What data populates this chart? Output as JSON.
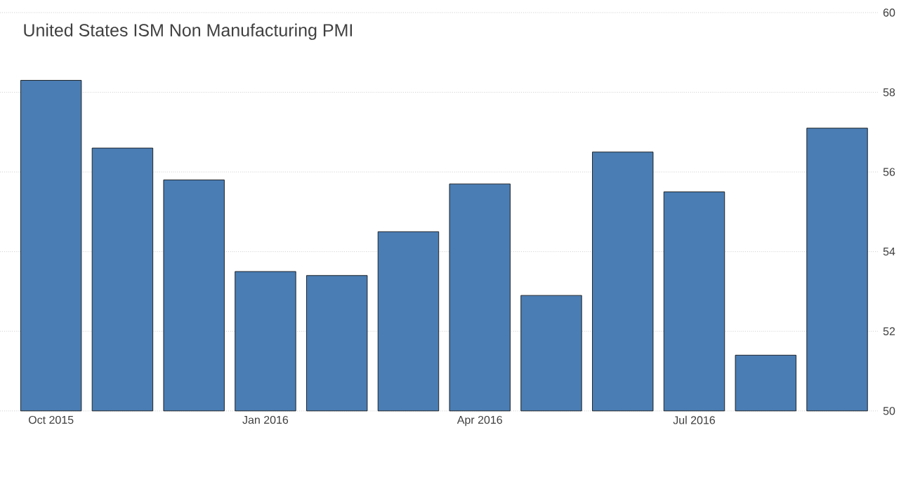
{
  "chart_data": {
    "type": "bar",
    "title": "United States ISM Non Manufacturing PMI",
    "categories": [
      "Oct 2015",
      null,
      null,
      "Jan 2016",
      null,
      null,
      "Apr 2016",
      null,
      null,
      "Jul 2016",
      null,
      null
    ],
    "values": [
      58.3,
      56.6,
      55.8,
      53.5,
      53.4,
      54.5,
      55.7,
      52.9,
      56.5,
      55.5,
      51.4,
      57.1
    ],
    "color": "#4a7db3",
    "ylim": [
      50,
      60
    ],
    "yticks": [
      50,
      52,
      54,
      56,
      58,
      60
    ],
    "grid": "y"
  }
}
